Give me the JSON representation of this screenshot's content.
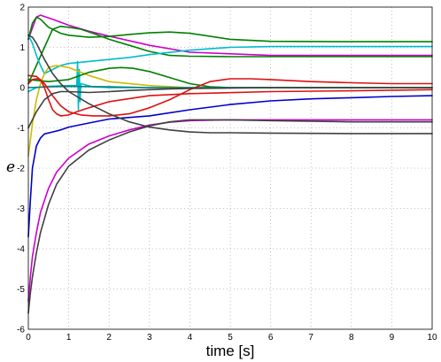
{
  "chart_data": {
    "type": "line",
    "title": "",
    "xlabel": "time [s]",
    "ylabel": "e",
    "xlim": [
      0,
      10
    ],
    "ylim": [
      -6,
      2
    ],
    "xticks": [
      "0",
      "1",
      "2",
      "3",
      "4",
      "5",
      "6",
      "7",
      "8",
      "9",
      "10"
    ],
    "yticks": [
      "-6",
      "-5",
      "-4",
      "-3",
      "-2",
      "-1",
      "0",
      "1",
      "2"
    ],
    "grid": true,
    "legend": "none",
    "series": [
      {
        "color": "#cc00cc",
        "x": [
          0,
          0.2,
          0.3,
          0.6,
          1.0,
          1.5,
          2.0,
          3.0,
          4.0,
          6.0,
          8.0,
          10.0
        ],
        "y": [
          1.2,
          1.75,
          1.8,
          1.7,
          1.55,
          1.4,
          1.28,
          1.05,
          0.88,
          0.8,
          0.8,
          0.8
        ]
      },
      {
        "color": "#008000",
        "x": [
          0,
          0.1,
          0.2,
          0.3,
          0.5,
          0.8,
          1.0,
          1.5,
          2.0,
          2.5,
          3.0,
          3.5,
          4.0,
          5.0,
          6.0,
          8.0,
          10.0
        ],
        "y": [
          1.2,
          1.6,
          1.75,
          1.7,
          1.5,
          1.35,
          1.3,
          1.25,
          1.27,
          1.32,
          1.36,
          1.38,
          1.35,
          1.2,
          1.15,
          1.14,
          1.14
        ]
      },
      {
        "color": "#008000",
        "x": [
          0,
          0.4,
          0.6,
          0.8,
          1.0,
          1.3,
          1.6,
          2.0,
          2.5,
          3.0,
          3.5,
          4.0,
          5.0,
          6.0,
          8.0,
          10.0
        ],
        "y": [
          0.1,
          1.0,
          1.45,
          1.52,
          1.5,
          1.45,
          1.35,
          1.2,
          1.05,
          0.9,
          0.8,
          0.78,
          0.77,
          0.77,
          0.77,
          0.77
        ]
      },
      {
        "color": "#00bbcc",
        "x": [
          0,
          0.1,
          0.2,
          0.3,
          0.4,
          0.6,
          0.8,
          1.0,
          1.5,
          2.0,
          2.5,
          3.0,
          4.0,
          5.0,
          6.0,
          8.0,
          10.0
        ],
        "y": [
          1.3,
          1.1,
          0.8,
          0.55,
          0.35,
          0.45,
          0.55,
          0.6,
          0.65,
          0.7,
          0.75,
          0.82,
          0.93,
          1.0,
          1.02,
          1.02,
          1.02
        ]
      },
      {
        "color": "#00bbcc",
        "x": [
          0,
          0.2,
          0.5,
          1.0,
          1.2,
          1.22,
          1.24,
          1.26,
          1.28,
          1.3,
          1.6,
          2.0,
          3.0,
          10.0
        ],
        "y": [
          -0.1,
          0.0,
          0.03,
          0.05,
          0.05,
          0.65,
          -0.55,
          0.45,
          -0.35,
          0.1,
          0.02,
          0.0,
          0.0,
          0.0
        ]
      },
      {
        "color": "#ccbb00",
        "x": [
          0,
          0.1,
          0.2,
          0.3,
          0.4,
          0.5,
          0.7,
          1.0,
          1.5,
          2.0,
          3.0,
          4.0,
          10.0
        ],
        "y": [
          -1.7,
          -0.9,
          -0.3,
          0.1,
          0.35,
          0.5,
          0.55,
          0.5,
          0.3,
          0.15,
          0.05,
          0.0,
          0.0
        ]
      },
      {
        "color": "#008000",
        "x": [
          0,
          0.5,
          1.0,
          1.5,
          2.0,
          2.3,
          2.6,
          3.0,
          3.5,
          4.0,
          4.5,
          5.0,
          6.0,
          10.0
        ],
        "y": [
          0.2,
          0.15,
          0.2,
          0.38,
          0.48,
          0.5,
          0.48,
          0.4,
          0.25,
          0.1,
          0.02,
          0.0,
          0.0,
          0.0
        ]
      },
      {
        "color": "#008080",
        "x": [
          0,
          0.5,
          1.0,
          2.0,
          3.0,
          10.0
        ],
        "y": [
          0.0,
          0.02,
          0.03,
          0.02,
          0.0,
          0.0
        ]
      },
      {
        "color": "#dd1111",
        "x": [
          0,
          0.1,
          0.2,
          0.3,
          0.4,
          0.5,
          0.6,
          0.7,
          0.8,
          1.0,
          1.2,
          1.5,
          2.0,
          3.0,
          4.0,
          6.0,
          8.0,
          10.0
        ],
        "y": [
          0.1,
          0.2,
          0.22,
          0.2,
          0.0,
          -0.3,
          -0.55,
          -0.65,
          -0.7,
          -0.68,
          -0.6,
          -0.5,
          -0.35,
          -0.2,
          -0.15,
          -0.1,
          -0.08,
          -0.05
        ]
      },
      {
        "color": "#dd1111",
        "x": [
          0,
          0.2,
          0.4,
          0.6,
          0.8,
          1.0,
          1.3,
          1.6,
          2.0,
          2.5,
          3.0,
          3.5,
          4.0,
          4.5,
          5.0,
          5.5,
          6.0,
          7.0,
          8.0,
          9.0,
          10.0
        ],
        "y": [
          0.3,
          0.28,
          0.1,
          -0.2,
          -0.45,
          -0.6,
          -0.68,
          -0.7,
          -0.7,
          -0.65,
          -0.5,
          -0.3,
          -0.05,
          0.15,
          0.22,
          0.22,
          0.2,
          0.15,
          0.12,
          0.1,
          0.1
        ]
      },
      {
        "color": "#0000cc",
        "x": [
          0,
          0.05,
          0.1,
          0.2,
          0.3,
          0.4,
          0.6,
          0.8,
          1.0,
          1.5,
          2.0,
          3.0,
          4.0,
          5.0,
          6.0,
          7.0,
          8.0,
          9.0,
          10.0
        ],
        "y": [
          -3.7,
          -2.8,
          -2.0,
          -1.45,
          -1.25,
          -1.15,
          -1.1,
          -1.05,
          -0.98,
          -0.88,
          -0.78,
          -0.7,
          -0.55,
          -0.42,
          -0.33,
          -0.28,
          -0.25,
          -0.22,
          -0.2
        ]
      },
      {
        "color": "#cc00cc",
        "x": [
          0,
          0.05,
          0.1,
          0.2,
          0.3,
          0.5,
          0.7,
          1.0,
          1.5,
          2.0,
          2.5,
          3.0,
          3.5,
          4.0,
          5.0,
          6.0,
          8.0,
          10.0
        ],
        "y": [
          -5.3,
          -4.7,
          -4.2,
          -3.6,
          -3.1,
          -2.5,
          -2.1,
          -1.75,
          -1.4,
          -1.2,
          -1.05,
          -0.93,
          -0.86,
          -0.82,
          -0.8,
          -0.8,
          -0.8,
          -0.8
        ]
      },
      {
        "color": "#404040",
        "x": [
          0,
          0.05,
          0.1,
          0.2,
          0.3,
          0.5,
          0.7,
          1.0,
          1.5,
          2.0,
          2.5,
          3.0,
          3.5,
          4.0,
          5.0,
          6.0,
          8.0,
          10.0
        ],
        "y": [
          -5.6,
          -5.1,
          -4.7,
          -4.1,
          -3.6,
          -2.9,
          -2.4,
          -1.95,
          -1.55,
          -1.3,
          -1.1,
          -0.95,
          -0.85,
          -0.8,
          -0.8,
          -0.82,
          -0.85,
          -0.85
        ]
      },
      {
        "color": "#404040",
        "x": [
          0,
          0.1,
          0.2,
          0.3,
          0.4,
          0.6,
          0.8,
          1.0,
          1.5,
          2.0,
          2.5,
          3.0,
          3.5,
          4.0,
          4.5,
          5.0,
          6.0,
          8.0,
          10.0
        ],
        "y": [
          1.3,
          1.25,
          1.1,
          0.9,
          0.7,
          0.35,
          0.1,
          -0.1,
          -0.4,
          -0.65,
          -0.85,
          -0.98,
          -1.05,
          -1.1,
          -1.12,
          -1.12,
          -1.13,
          -1.14,
          -1.14
        ]
      },
      {
        "color": "#404040",
        "x": [
          0,
          0.2,
          0.4,
          0.6,
          0.8,
          1.0,
          1.5,
          2.0,
          2.5,
          3.0,
          3.5,
          4.0,
          5.0,
          6.0,
          8.0,
          10.0
        ],
        "y": [
          -1.0,
          -0.6,
          -0.3,
          -0.15,
          -0.1,
          -0.1,
          -0.12,
          -0.1,
          -0.07,
          -0.05,
          -0.03,
          -0.02,
          -0.01,
          0.0,
          0.0,
          0.0
        ]
      }
    ]
  }
}
